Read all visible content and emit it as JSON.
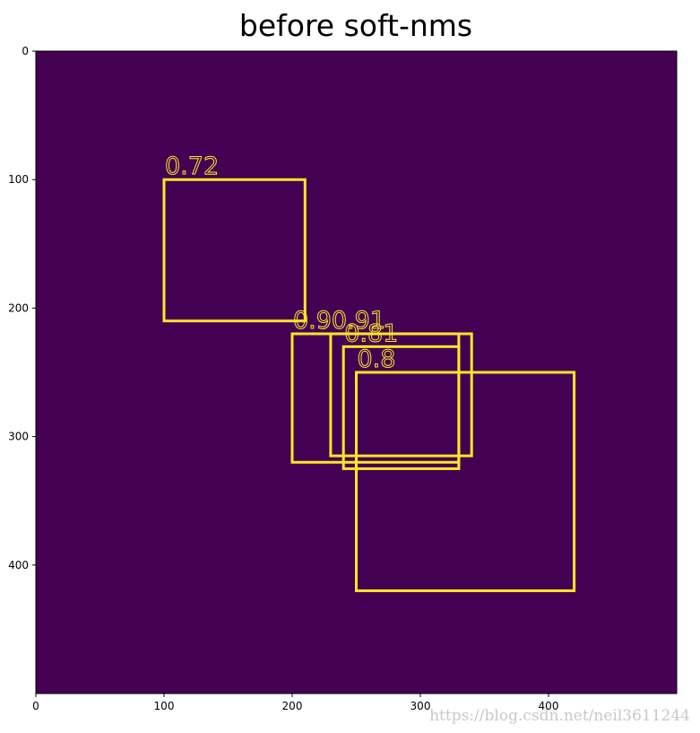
{
  "chart_data": {
    "type": "boxes",
    "title": "before soft-nms",
    "xlim": [
      0,
      500
    ],
    "ylim": [
      500,
      0
    ],
    "xticks": [
      0,
      100,
      200,
      300,
      400
    ],
    "yticks": [
      0,
      100,
      200,
      300,
      400
    ],
    "background": "#440154",
    "color": "#fde725",
    "boxes": [
      {
        "x1": 100,
        "y1": 100,
        "x2": 210,
        "y2": 210,
        "score": 0.72
      },
      {
        "x1": 200,
        "y1": 220,
        "x2": 330,
        "y2": 320,
        "score": 0.9
      },
      {
        "x1": 230,
        "y1": 220,
        "x2": 340,
        "y2": 315,
        "score": 0.91
      },
      {
        "x1": 240,
        "y1": 230,
        "x2": 330,
        "y2": 325,
        "score": 0.81
      },
      {
        "x1": 250,
        "y1": 250,
        "x2": 420,
        "y2": 420,
        "score": 0.8
      }
    ],
    "watermark": "https://blog.csdn.net/neil3611244"
  }
}
